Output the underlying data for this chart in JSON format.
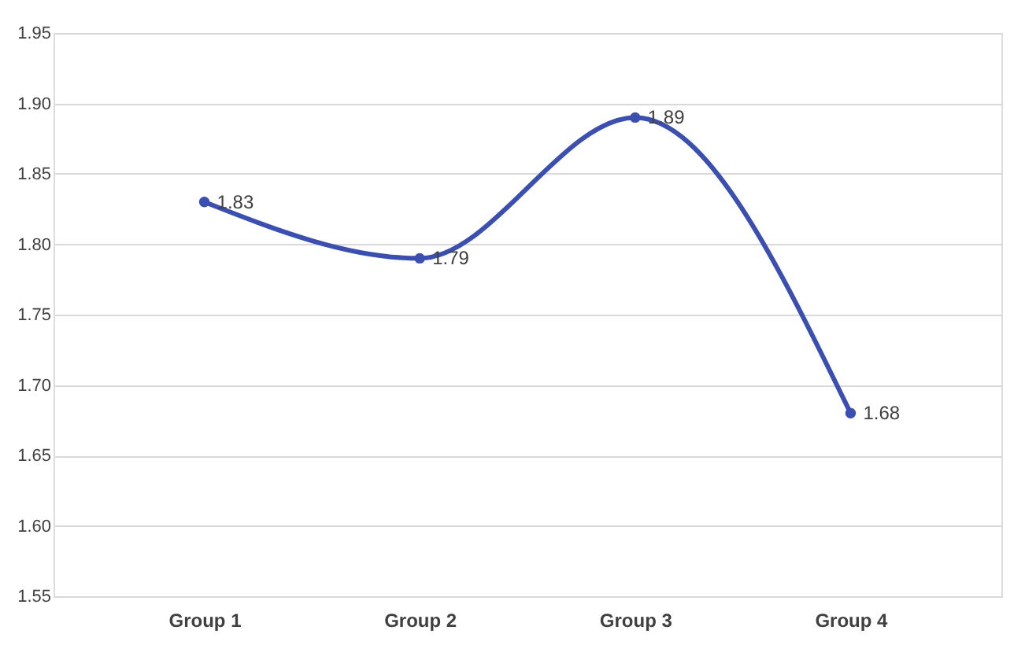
{
  "chart_data": {
    "type": "line",
    "categories": [
      "Group 1",
      "Group 2",
      "Group 3",
      "Group 4"
    ],
    "series": [
      {
        "color": "#3a4fb0",
        "values": [
          1.83,
          1.79,
          1.89,
          1.68
        ]
      }
    ],
    "ylim": [
      1.55,
      1.95
    ],
    "yticks": [
      1.55,
      {
        "value": 1.6,
        "label": "1.60"
      },
      1.65,
      {
        "value": 1.7,
        "label": "1.70"
      },
      1.75,
      {
        "value": 1.8,
        "label": "1.80"
      },
      1.85,
      {
        "value": 1.9,
        "label": "1.90"
      },
      1.95
    ],
    "grid": "y",
    "marker": "circle",
    "line_style": "solid",
    "data_labels": true
  }
}
